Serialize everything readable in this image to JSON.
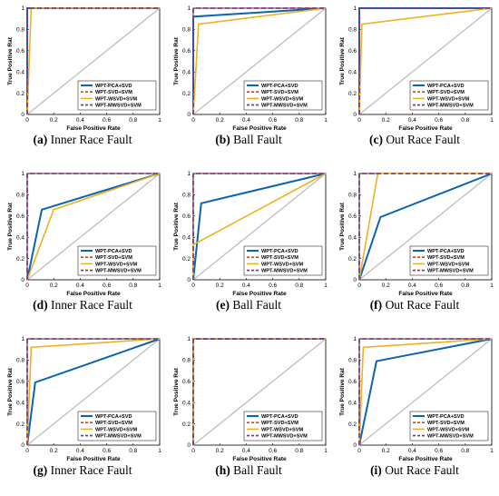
{
  "figure": {
    "colors": {
      "WPT-PCA+SVD": "#0b63b3",
      "WPT-SVD+SVM": "#d94412",
      "WPT-WSVD+SVM": "#edb120",
      "WPT-MWSVD+SVM": "#7e2f8e",
      "diagonal": "#bdbdbd"
    }
  },
  "chart_data": [
    {
      "type": "line",
      "caption_letter": "(a)",
      "caption_text": "Inner Race Fault",
      "xlabel": "False Positive Rate",
      "ylabel": "True Positive Rat",
      "xlim": [
        0,
        1
      ],
      "ylim": [
        0,
        1
      ],
      "xticks": [
        "0",
        "0.2",
        "0.4",
        "0.6",
        "0.8",
        "1"
      ],
      "yticks": [
        "0",
        "0.2",
        "0.4",
        "0.6",
        "0.8",
        "1"
      ],
      "legend_location": "lower-right",
      "legend": [
        "WPT-PCA+SVD",
        "WPT-SVD+SVM",
        "WPT-WSVD+SVM",
        "WPT-MWSVD+SVM"
      ],
      "series": [
        {
          "name": "WPT-PCA+SVD",
          "x": [
            0,
            0,
            1
          ],
          "y": [
            0,
            1,
            1
          ]
        },
        {
          "name": "WPT-SVD+SVM",
          "x": [
            0,
            0,
            1
          ],
          "y": [
            0,
            1,
            1
          ]
        },
        {
          "name": "WPT-WSVD+SVM",
          "x": [
            0,
            0.03,
            1
          ],
          "y": [
            0,
            1,
            1
          ]
        },
        {
          "name": "WPT-MWSVD+SVM",
          "x": [
            0,
            0,
            1
          ],
          "y": [
            0,
            1,
            1
          ]
        }
      ]
    },
    {
      "type": "line",
      "caption_letter": "(b)",
      "caption_text": "Ball Fault",
      "xlabel": "False Positive Rate",
      "ylabel": "True Positive Rat",
      "xlim": [
        0,
        1
      ],
      "ylim": [
        0,
        1
      ],
      "xticks": [
        "0",
        "0.2",
        "0.4",
        "0.6",
        "0.8",
        "1"
      ],
      "yticks": [
        "0",
        "0.2",
        "0.4",
        "0.6",
        "0.8",
        "1"
      ],
      "legend_location": "lower-right",
      "legend": [
        "WPT-PCA+SVD",
        "WPT-SVD+SVM",
        "WPT-WSVD+SVM",
        "WPT-MWSVD+SVM"
      ],
      "series": [
        {
          "name": "WPT-PCA+SVD",
          "x": [
            0,
            0,
            1
          ],
          "y": [
            0,
            0.92,
            1
          ]
        },
        {
          "name": "WPT-SVD+SVM",
          "x": [
            0,
            0,
            1
          ],
          "y": [
            0,
            1,
            1
          ]
        },
        {
          "name": "WPT-WSVD+SVM",
          "x": [
            0,
            0.04,
            1
          ],
          "y": [
            0,
            0.85,
            1
          ]
        },
        {
          "name": "WPT-MWSVD+SVM",
          "x": [
            0,
            0,
            1
          ],
          "y": [
            0,
            1,
            1
          ]
        }
      ]
    },
    {
      "type": "line",
      "caption_letter": "(c)",
      "caption_text": "Out Race Fault",
      "xlabel": "False Positive Rate",
      "ylabel": "True Positive Rat",
      "xlim": [
        0,
        1
      ],
      "ylim": [
        0,
        1
      ],
      "xticks": [
        "0",
        "0.2",
        "0.4",
        "0.6",
        "0.8",
        "1"
      ],
      "yticks": [
        "0",
        "0.2",
        "0.4",
        "0.6",
        "0.8",
        "1"
      ],
      "legend_location": "lower-right",
      "legend": [
        "WPT-PCA+SVD",
        "WPT-SVD+SVM",
        "WPT-WSVD+SVM",
        "WPT-MWSVD+SVM"
      ],
      "series": [
        {
          "name": "WPT-PCA+SVD",
          "x": [
            0,
            0,
            1
          ],
          "y": [
            0,
            1,
            1
          ]
        },
        {
          "name": "WPT-SVD+SVM",
          "x": [
            0,
            0,
            1
          ],
          "y": [
            0,
            1,
            1
          ]
        },
        {
          "name": "WPT-WSVD+SVM",
          "x": [
            0,
            0.02,
            1
          ],
          "y": [
            0,
            0.85,
            1
          ]
        },
        {
          "name": "WPT-MWSVD+SVM",
          "x": [
            0,
            0,
            1
          ],
          "y": [
            0,
            1,
            1
          ]
        }
      ]
    },
    {
      "type": "line",
      "caption_letter": "(d)",
      "caption_text": "Inner Race Fault",
      "xlabel": "False Positive Rate",
      "ylabel": "True Positive Rat",
      "xlim": [
        0,
        1
      ],
      "ylim": [
        0,
        1
      ],
      "xticks": [
        "0",
        "0.2",
        "0.4",
        "0.6",
        "0.8",
        "1"
      ],
      "yticks": [
        "0",
        "0.2",
        "0.4",
        "0.6",
        "0.8",
        "1"
      ],
      "legend_location": "lower-right",
      "legend": [
        "WPT-PCA+SVD",
        "WPT-SVD+SVM",
        "WPT-WSVD+SVM",
        "WPT-MWSVD+SVM"
      ],
      "series": [
        {
          "name": "WPT-PCA+SVD",
          "x": [
            0,
            0.11,
            1
          ],
          "y": [
            0,
            0.66,
            1
          ]
        },
        {
          "name": "WPT-SVD+SVM",
          "x": [
            0,
            0,
            1
          ],
          "y": [
            0,
            1,
            1
          ]
        },
        {
          "name": "WPT-WSVD+SVM",
          "x": [
            0,
            0.2,
            1
          ],
          "y": [
            0,
            0.66,
            1
          ]
        },
        {
          "name": "WPT-MWSVD+SVM",
          "x": [
            0,
            0,
            1
          ],
          "y": [
            0,
            1,
            1
          ]
        }
      ]
    },
    {
      "type": "line",
      "caption_letter": "(e)",
      "caption_text": "Ball Fault",
      "xlabel": "False Positive Rate",
      "ylabel": "True Positive Rat",
      "xlim": [
        0,
        1
      ],
      "ylim": [
        0,
        1
      ],
      "xticks": [
        "0",
        "0.2",
        "0.4",
        "0.6",
        "0.8",
        "1"
      ],
      "yticks": [
        "0",
        "0.2",
        "0.4",
        "0.6",
        "0.8",
        "1"
      ],
      "legend_location": "lower-right",
      "legend": [
        "WPT-PCA+SVD",
        "WPT-SVD+SVM",
        "WPT-WSVD+SVM",
        "WPT-MWSVD+SVM"
      ],
      "series": [
        {
          "name": "WPT-PCA+SVD",
          "x": [
            0,
            0.06,
            1
          ],
          "y": [
            0,
            0.72,
            1
          ]
        },
        {
          "name": "WPT-SVD+SVM",
          "x": [
            0,
            0,
            1
          ],
          "y": [
            0,
            1,
            1
          ]
        },
        {
          "name": "WPT-WSVD+SVM",
          "x": [
            0,
            0,
            1
          ],
          "y": [
            0,
            0.33,
            1
          ]
        },
        {
          "name": "WPT-MWSVD+SVM",
          "x": [
            0,
            0,
            1
          ],
          "y": [
            0,
            1,
            1
          ]
        }
      ]
    },
    {
      "type": "line",
      "caption_letter": "(f)",
      "caption_text": "Out Race Fault",
      "xlabel": "False Positive Rate",
      "ylabel": "True Positive Rat",
      "xlim": [
        0,
        1
      ],
      "ylim": [
        0,
        1
      ],
      "xticks": [
        "0",
        "0.2",
        "0.4",
        "0.6",
        "0.8",
        "1"
      ],
      "yticks": [
        "0",
        "0.2",
        "0.4",
        "0.6",
        "0.8",
        "1"
      ],
      "legend_location": "lower-right",
      "legend": [
        "WPT-PCA+SVD",
        "WPT-SVD+SVM",
        "WPT-WSVD+SVM",
        "WPT-MWSVD+SVM"
      ],
      "series": [
        {
          "name": "WPT-PCA+SVD",
          "x": [
            0,
            0.16,
            1
          ],
          "y": [
            0,
            0.59,
            1
          ]
        },
        {
          "name": "WPT-SVD+SVM",
          "x": [
            0,
            0,
            1
          ],
          "y": [
            0,
            1,
            1
          ]
        },
        {
          "name": "WPT-WSVD+SVM",
          "x": [
            0,
            0.14,
            1
          ],
          "y": [
            0,
            1,
            1
          ]
        },
        {
          "name": "WPT-MWSVD+SVM",
          "x": [
            0,
            0,
            1
          ],
          "y": [
            0,
            1,
            1
          ]
        }
      ]
    },
    {
      "type": "line",
      "caption_letter": "(g)",
      "caption_text": "Inner Race Fault",
      "xlabel": "False Positive Rate",
      "ylabel": "True Positive Rat",
      "xlim": [
        0,
        1
      ],
      "ylim": [
        0,
        1
      ],
      "xticks": [
        "0",
        "0.2",
        "0.4",
        "0.6",
        "0.8",
        "1"
      ],
      "yticks": [
        "0",
        "0.2",
        "0.4",
        "0.6",
        "0.8",
        "1"
      ],
      "legend_location": "lower-right",
      "legend": [
        "WPT-PCA+SVD",
        "WPT-SVD+SVM",
        "WPT-WSVD+SVM",
        "WPT-MWSVD+SVM"
      ],
      "series": [
        {
          "name": "WPT-PCA+SVD",
          "x": [
            0,
            0.06,
            1
          ],
          "y": [
            0,
            0.59,
            1
          ]
        },
        {
          "name": "WPT-SVD+SVM",
          "x": [
            0,
            0,
            1
          ],
          "y": [
            0,
            1,
            1
          ]
        },
        {
          "name": "WPT-WSVD+SVM",
          "x": [
            0,
            0.03,
            1
          ],
          "y": [
            0,
            0.92,
            1
          ]
        },
        {
          "name": "WPT-MWSVD+SVM",
          "x": [
            0,
            0,
            1
          ],
          "y": [
            0,
            1,
            1
          ]
        }
      ]
    },
    {
      "type": "line",
      "caption_letter": "(h)",
      "caption_text": "Ball Fault",
      "xlabel": "False Positive Rate",
      "ylabel": "True Positive Rat",
      "xlim": [
        0,
        1
      ],
      "ylim": [
        0,
        1
      ],
      "xticks": [
        "0",
        "0.2",
        "0.4",
        "0.6",
        "0.8",
        "1"
      ],
      "yticks": [
        "0",
        "0.2",
        "0.4",
        "0.6",
        "0.8",
        "1"
      ],
      "legend_location": "lower-right",
      "legend": [
        "WPT-PCA+SVD",
        "WPT-SVD+SVM",
        "WPT-WSVD+SVM",
        "WPT-MWSVD+SVM"
      ],
      "series": [
        {
          "name": "WPT-PCA+SVD",
          "x": [
            0,
            0,
            1
          ],
          "y": [
            0,
            1,
            1
          ]
        },
        {
          "name": "WPT-SVD+SVM",
          "x": [
            0,
            0,
            1
          ],
          "y": [
            0,
            1,
            1
          ]
        },
        {
          "name": "WPT-WSVD+SVM",
          "x": [
            0,
            0,
            1
          ],
          "y": [
            0,
            1,
            1
          ]
        },
        {
          "name": "WPT-MWSVD+SVM",
          "x": [
            0,
            0,
            1
          ],
          "y": [
            0,
            1,
            1
          ]
        }
      ]
    },
    {
      "type": "line",
      "caption_letter": "(i)",
      "caption_text": "Out Race Fault",
      "xlabel": "False Positive Rate",
      "ylabel": "True Positive Rat",
      "xlim": [
        0,
        1
      ],
      "ylim": [
        0,
        1
      ],
      "xticks": [
        "0",
        "0.2",
        "0.4",
        "0.6",
        "0.8",
        "1"
      ],
      "yticks": [
        "0",
        "0.2",
        "0.4",
        "0.6",
        "0.8",
        "1"
      ],
      "legend_location": "lower-right",
      "legend": [
        "WPT-PCA+SVD",
        "WPT-SVD+SVM",
        "WPT-WSVD+SVM",
        "WPT-MWSVD+SVM"
      ],
      "series": [
        {
          "name": "WPT-PCA+SVD",
          "x": [
            0,
            0.13,
            1
          ],
          "y": [
            0,
            0.79,
            1
          ]
        },
        {
          "name": "WPT-SVD+SVM",
          "x": [
            0,
            0,
            1
          ],
          "y": [
            0,
            1,
            1
          ]
        },
        {
          "name": "WPT-WSVD+SVM",
          "x": [
            0,
            0.03,
            1
          ],
          "y": [
            0,
            0.92,
            1
          ]
        },
        {
          "name": "WPT-MWSVD+SVM",
          "x": [
            0,
            0,
            1
          ],
          "y": [
            0,
            1,
            1
          ]
        }
      ]
    }
  ]
}
